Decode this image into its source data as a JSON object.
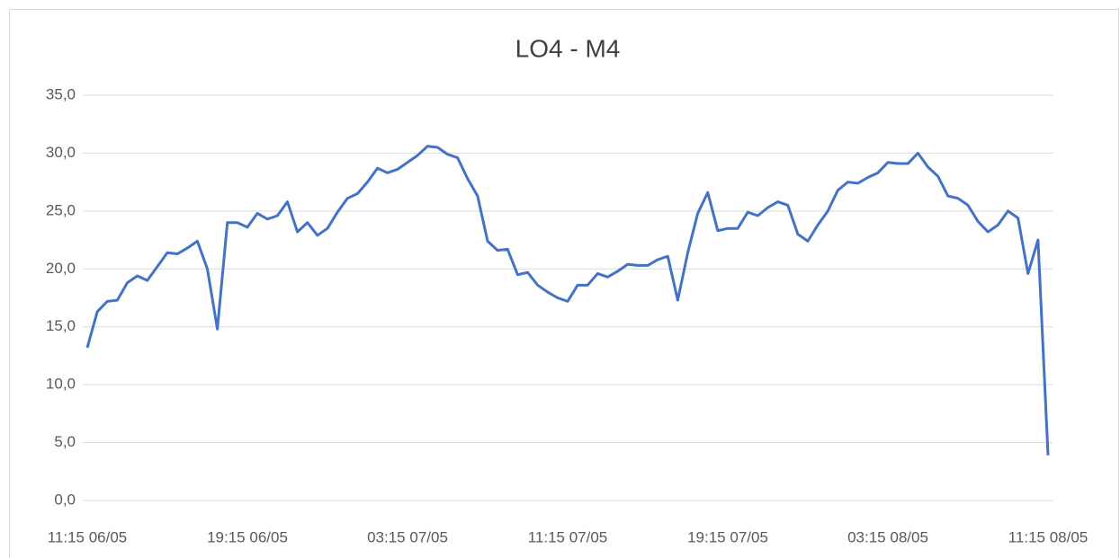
{
  "chart_data": {
    "type": "line",
    "title": "LO4 - M4",
    "categories": [
      "11:15 06/05",
      null,
      null,
      null,
      null,
      null,
      null,
      null,
      null,
      null,
      null,
      null,
      null,
      null,
      null,
      null,
      "19:15 06/05",
      null,
      null,
      null,
      null,
      null,
      null,
      null,
      null,
      null,
      null,
      null,
      null,
      null,
      null,
      null,
      "03:15 07/05",
      null,
      null,
      null,
      null,
      null,
      null,
      null,
      null,
      null,
      null,
      null,
      null,
      null,
      null,
      null,
      "11:15 07/05",
      null,
      null,
      null,
      null,
      null,
      null,
      null,
      null,
      null,
      null,
      null,
      null,
      null,
      null,
      null,
      "19:15 07/05",
      null,
      null,
      null,
      null,
      null,
      null,
      null,
      null,
      null,
      null,
      null,
      null,
      null,
      null,
      null,
      "03:15 08/05",
      null,
      null,
      null,
      null,
      null,
      null,
      null,
      null,
      null,
      null,
      null,
      null,
      null,
      null,
      null,
      "11:15 08/05"
    ],
    "series": [
      {
        "color": "#4472c4",
        "values": [
          13.2,
          16.3,
          17.2,
          17.3,
          18.8,
          19.4,
          19.0,
          20.2,
          21.4,
          21.3,
          21.8,
          22.4,
          20.0,
          14.8,
          24.0,
          24.0,
          23.6,
          24.8,
          24.3,
          24.6,
          25.8,
          23.2,
          24.0,
          22.9,
          23.5,
          24.9,
          26.1,
          26.5,
          27.5,
          28.7,
          28.3,
          28.6,
          29.2,
          29.8,
          30.6,
          30.5,
          29.9,
          29.6,
          27.8,
          26.3,
          22.4,
          21.6,
          21.7,
          19.5,
          19.7,
          18.6,
          18.0,
          17.5,
          17.2,
          18.6,
          18.6,
          19.6,
          19.3,
          19.8,
          20.4,
          20.3,
          20.3,
          20.8,
          21.1,
          17.3,
          21.4,
          24.8,
          26.6,
          23.3,
          23.5,
          23.5,
          24.9,
          24.6,
          25.3,
          25.8,
          25.5,
          23.0,
          22.4,
          23.8,
          25.0,
          26.8,
          27.5,
          27.4,
          27.9,
          28.3,
          29.2,
          29.1,
          29.1,
          30.0,
          28.8,
          28.0,
          26.3,
          26.1,
          25.5,
          24.1,
          23.2,
          23.8,
          25.0,
          24.4,
          19.6,
          22.5,
          3.9
        ]
      }
    ],
    "ylim": [
      0,
      35
    ],
    "yticks": [
      {
        "value": 0,
        "label": "0,0"
      },
      {
        "value": 5,
        "label": "5,0"
      },
      {
        "value": 10,
        "label": "10,0"
      },
      {
        "value": 15,
        "label": "15,0"
      },
      {
        "value": 20,
        "label": "20,0"
      },
      {
        "value": 25,
        "label": "25,0"
      },
      {
        "value": 30,
        "label": "30,0"
      },
      {
        "value": 35,
        "label": "35,0"
      }
    ],
    "grid": true
  }
}
